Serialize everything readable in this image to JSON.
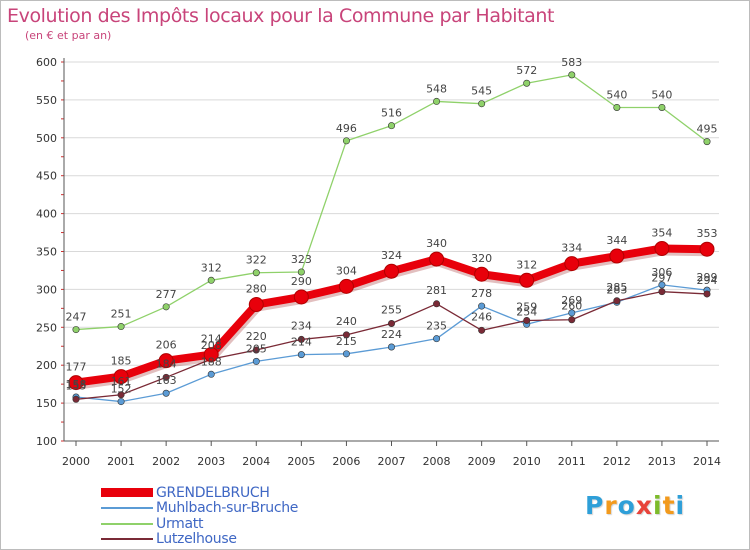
{
  "title": "Evolution des Impôts locaux pour la Commune par Habitant",
  "subtitle": "(en € et par an)",
  "brand": {
    "letters": [
      "P",
      "r",
      "o",
      "x",
      "i",
      "t",
      "i"
    ],
    "colors": [
      "#2e9fd8",
      "#f29a1d",
      "#2e9fd8",
      "#e8433a",
      "#7dbb2a",
      "#f29a1d",
      "#2e9fd8"
    ]
  },
  "chart_data": {
    "type": "line",
    "title": "Evolution des Impôts locaux pour la Commune par Habitant",
    "subtitle": "(en € et par an)",
    "x": [
      "2000",
      "2001",
      "2002",
      "2003",
      "2004",
      "2005",
      "2006",
      "2007",
      "2008",
      "2009",
      "2010",
      "2011",
      "2012",
      "2013",
      "2014"
    ],
    "yticks": [
      100,
      150,
      200,
      250,
      300,
      350,
      400,
      450,
      500,
      550,
      600
    ],
    "ylim": [
      100,
      600
    ],
    "grid": "horizontal",
    "legend_position": "bottom-left",
    "series": [
      {
        "name": "GRENDELBRUCH",
        "color": "#e8000b",
        "values": [
          177,
          185,
          206,
          214,
          280,
          290,
          304,
          324,
          340,
          320,
          312,
          334,
          344,
          354,
          353
        ],
        "labels": [
          "177",
          "185",
          "206",
          "214",
          "280",
          "290",
          "304",
          "324",
          "340",
          "320",
          "312",
          "334",
          "344",
          "354",
          "353"
        ],
        "emphasis": true
      },
      {
        "name": "Muhlbach-sur-Bruche",
        "color": "#5b9bd5",
        "values": [
          158,
          152,
          163,
          188,
          205,
          214,
          215,
          224,
          235,
          278,
          254,
          269,
          283,
          306,
          299
        ],
        "labels": [
          "158",
          "152",
          "163",
          "188",
          "205",
          "214",
          "215",
          "224",
          "235",
          "278",
          "254",
          "269",
          "283",
          "306",
          "299"
        ]
      },
      {
        "name": "Urmatt",
        "color": "#8fd16a",
        "values": [
          247,
          251,
          277,
          312,
          322,
          323,
          496,
          516,
          548,
          545,
          572,
          583,
          540,
          540,
          495
        ],
        "labels": [
          "247",
          "251",
          "277",
          "312",
          "322",
          "323",
          "496",
          "516",
          "548",
          "545",
          "572",
          "583",
          "540",
          "540",
          "495"
        ]
      },
      {
        "name": "Lutzelhouse",
        "color": "#7a2a36",
        "values": [
          155,
          161,
          184,
          208,
          220,
          234,
          240,
          255,
          281,
          246,
          259,
          260,
          285,
          297,
          294
        ],
        "labels": [
          "155",
          "161",
          "184",
          "208",
          "220",
          "234",
          "240",
          "255",
          "281",
          "246",
          "259",
          "260",
          "285",
          "297",
          "294"
        ]
      }
    ]
  }
}
